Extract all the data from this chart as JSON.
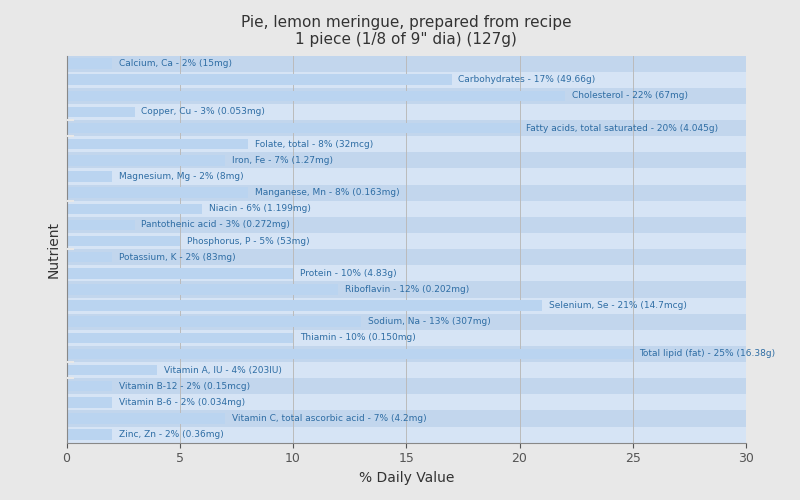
{
  "title": "Pie, lemon meringue, prepared from recipe\n1 piece (1/8 of 9\" dia) (127g)",
  "xlabel": "% Daily Value",
  "ylabel": "Nutrient",
  "xlim": [
    0,
    30
  ],
  "xticks": [
    0,
    5,
    10,
    15,
    20,
    25,
    30
  ],
  "bar_color": "#bad4f0",
  "background_color": "#e8e8e8",
  "text_color": "#2e6da4",
  "nutrients": [
    {
      "label": "Calcium, Ca - 2% (15mg)",
      "value": 2
    },
    {
      "label": "Carbohydrates - 17% (49.66g)",
      "value": 17
    },
    {
      "label": "Cholesterol - 22% (67mg)",
      "value": 22
    },
    {
      "label": "Copper, Cu - 3% (0.053mg)",
      "value": 3
    },
    {
      "label": "Fatty acids, total saturated - 20% (4.045g)",
      "value": 20
    },
    {
      "label": "Folate, total - 8% (32mcg)",
      "value": 8
    },
    {
      "label": "Iron, Fe - 7% (1.27mg)",
      "value": 7
    },
    {
      "label": "Magnesium, Mg - 2% (8mg)",
      "value": 2
    },
    {
      "label": "Manganese, Mn - 8% (0.163mg)",
      "value": 8
    },
    {
      "label": "Niacin - 6% (1.199mg)",
      "value": 6
    },
    {
      "label": "Pantothenic acid - 3% (0.272mg)",
      "value": 3
    },
    {
      "label": "Phosphorus, P - 5% (53mg)",
      "value": 5
    },
    {
      "label": "Potassium, K - 2% (83mg)",
      "value": 2
    },
    {
      "label": "Protein - 10% (4.83g)",
      "value": 10
    },
    {
      "label": "Riboflavin - 12% (0.202mg)",
      "value": 12
    },
    {
      "label": "Selenium, Se - 21% (14.7mcg)",
      "value": 21
    },
    {
      "label": "Sodium, Na - 13% (307mg)",
      "value": 13
    },
    {
      "label": "Thiamin - 10% (0.150mg)",
      "value": 10
    },
    {
      "label": "Total lipid (fat) - 25% (16.38g)",
      "value": 25
    },
    {
      "label": "Vitamin A, IU - 4% (203IU)",
      "value": 4
    },
    {
      "label": "Vitamin B-12 - 2% (0.15mcg)",
      "value": 2
    },
    {
      "label": "Vitamin B-6 - 2% (0.034mg)",
      "value": 2
    },
    {
      "label": "Vitamin C, total ascorbic acid - 7% (4.2mg)",
      "value": 7
    },
    {
      "label": "Zinc, Zn - 2% (0.36mg)",
      "value": 2
    }
  ],
  "band_colors": [
    "#d6e4f5",
    "#c2d6ed"
  ]
}
